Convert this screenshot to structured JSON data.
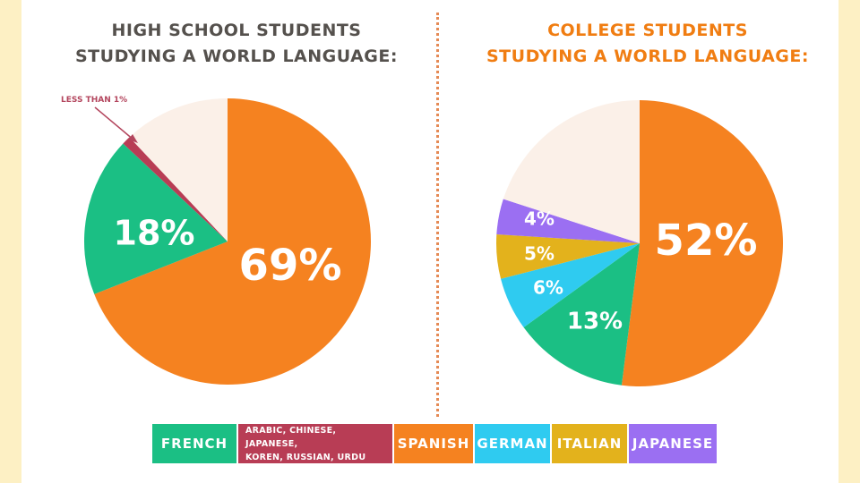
{
  "colors": {
    "french": "#1bbf84",
    "other": "#b83d55",
    "spanish": "#f58220",
    "german": "#2fcbf0",
    "italian": "#e3b21c",
    "japanese": "#9b6ff2",
    "remainder": "#fbf0e8"
  },
  "annotation": "LESS THAN 1%",
  "legend": [
    {
      "key": "french",
      "label": "FRENCH"
    },
    {
      "key": "other",
      "label": "ARABIC, CHINESE, JAPANESE,\nKOREN, RUSSIAN, URDU"
    },
    {
      "key": "spanish",
      "label": "SPANISH"
    },
    {
      "key": "german",
      "label": "GERMAN"
    },
    {
      "key": "italian",
      "label": "ITALIAN"
    },
    {
      "key": "japanese",
      "label": "JAPANESE"
    }
  ],
  "chart_data": [
    {
      "type": "pie",
      "title": "HIGH SCHOOL STUDENTS\nSTUDYING A WORLD LANGUAGE:",
      "slices": [
        {
          "key": "spanish",
          "value": 69,
          "label": "69%"
        },
        {
          "key": "french",
          "value": 18,
          "label": "18%"
        },
        {
          "key": "other",
          "value": 1,
          "label": ""
        },
        {
          "key": "remainder",
          "value": 12,
          "label": ""
        }
      ]
    },
    {
      "type": "pie",
      "title": "COLLEGE STUDENTS\nSTUDYING A WORLD LANGUAGE:",
      "slices": [
        {
          "key": "spanish",
          "value": 52,
          "label": "52%"
        },
        {
          "key": "french",
          "value": 13,
          "label": "13%"
        },
        {
          "key": "german",
          "value": 6,
          "label": "6%"
        },
        {
          "key": "italian",
          "value": 5,
          "label": "5%"
        },
        {
          "key": "japanese",
          "value": 4,
          "label": "4%"
        },
        {
          "key": "remainder",
          "value": 20,
          "label": ""
        }
      ]
    }
  ]
}
